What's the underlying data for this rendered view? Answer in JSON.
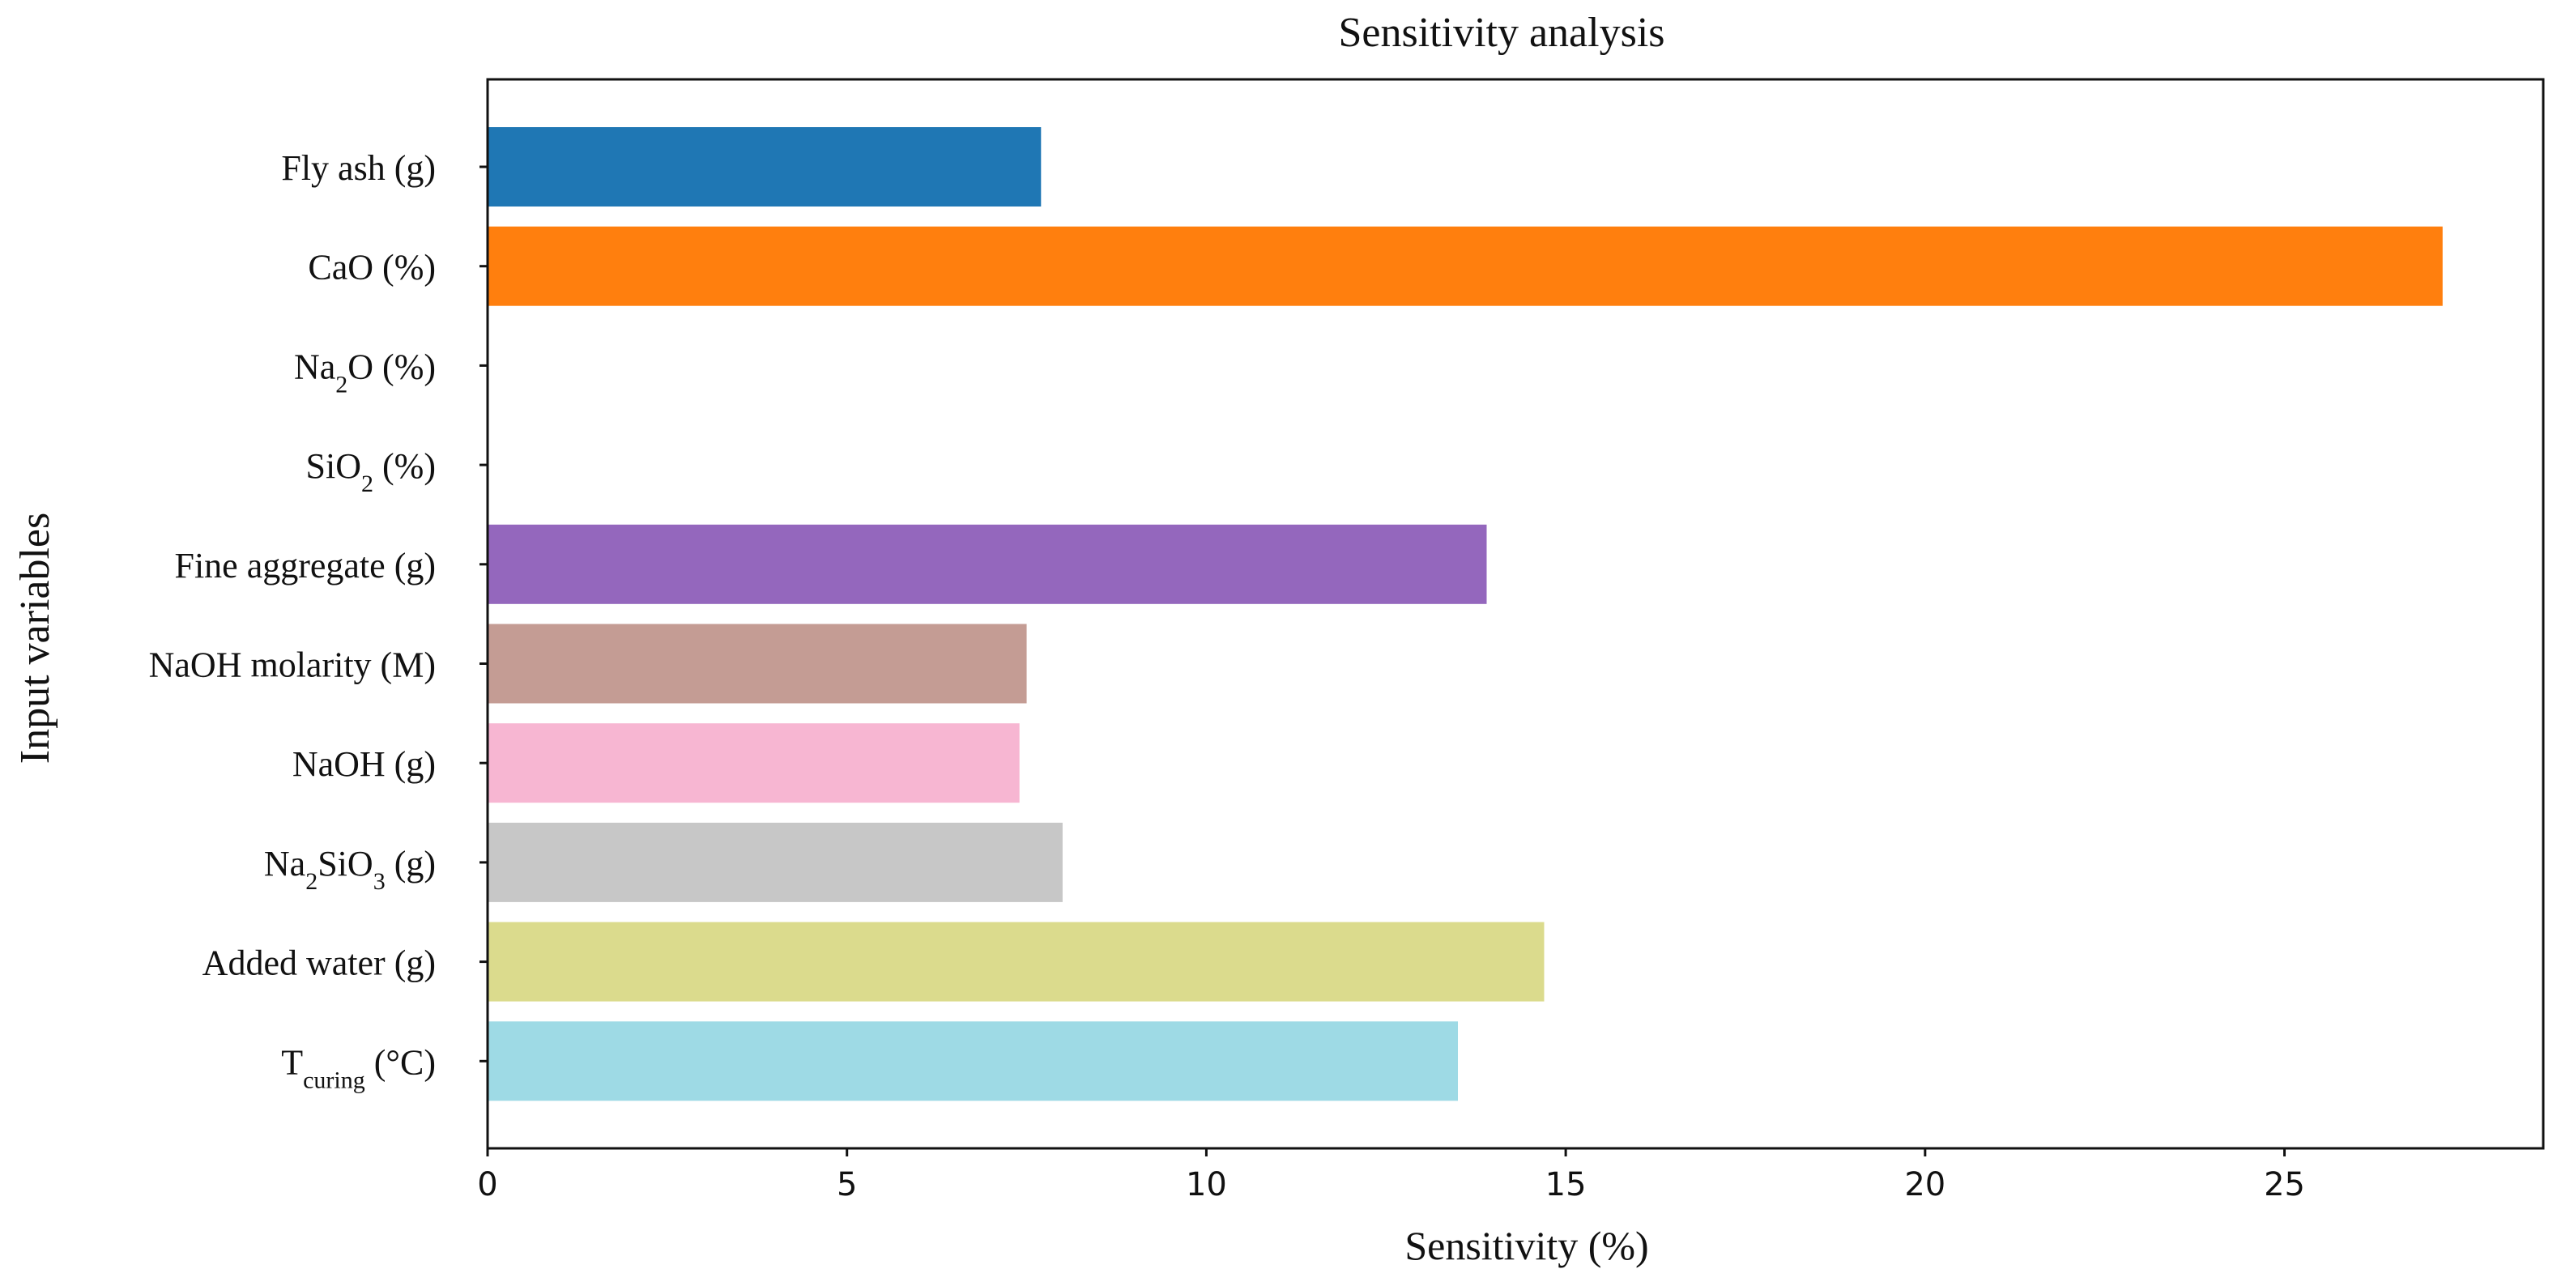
{
  "chart_data": {
    "type": "bar",
    "orientation": "horizontal",
    "title": "Sensitivity analysis",
    "xlabel": "Sensitivity (%)",
    "ylabel": "Input variables",
    "xlim": [
      0,
      28.6
    ],
    "xticks": [
      0,
      5,
      10,
      15,
      20,
      25
    ],
    "grid": false,
    "legend": "none",
    "categories": [
      {
        "base": "Fly ash (g)"
      },
      {
        "base": "CaO (%)"
      },
      {
        "base": "Na",
        "sub": "2",
        "tail": "O (%)"
      },
      {
        "base": "SiO",
        "sub": "2",
        "tail": " (%)"
      },
      {
        "base": "Fine aggregate (g)"
      },
      {
        "base": "NaOH molarity (M)"
      },
      {
        "base": "NaOH (g)"
      },
      {
        "base": "Na",
        "sub": "2",
        "mid": "SiO",
        "sub2": "3",
        "tail": " (g)"
      },
      {
        "base": "Added  water (g)"
      },
      {
        "base": "T",
        "sub": "curing",
        "tail": " (°C)"
      }
    ],
    "values": [
      7.7,
      27.2,
      0,
      0,
      13.9,
      7.5,
      7.4,
      8.0,
      14.7,
      13.5
    ],
    "colors": [
      "#1f77b4",
      "#ff7f0e",
      "#2ca02c",
      "#d62728",
      "#9467bd",
      "#c49c94",
      "#f7b6d2",
      "#c7c7c7",
      "#dbdb8d",
      "#9edae5"
    ]
  }
}
